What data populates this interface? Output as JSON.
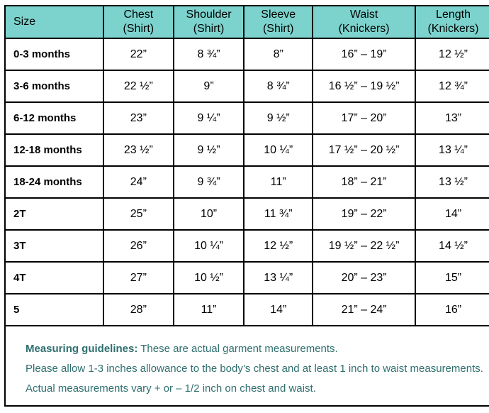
{
  "colors": {
    "header_bg": "#7cd3cd",
    "notes_text": "#2e6f6e",
    "border": "#000000",
    "body_text": "#000000"
  },
  "table": {
    "columns": [
      {
        "key": "size",
        "label": "Size",
        "sub": ""
      },
      {
        "key": "chest",
        "label": "Chest",
        "sub": "(Shirt)"
      },
      {
        "key": "shoulder",
        "label": "Shoulder",
        "sub": "(Shirt)"
      },
      {
        "key": "sleeve",
        "label": "Sleeve",
        "sub": "(Shirt)"
      },
      {
        "key": "waist",
        "label": "Waist",
        "sub": "(Knickers)"
      },
      {
        "key": "length",
        "label": "Length",
        "sub": "(Knickers)"
      }
    ],
    "rows": [
      {
        "size": "0-3 months",
        "values": [
          "22”",
          "8 ¾”",
          "8”",
          "16” – 19”",
          "12 ½”"
        ]
      },
      {
        "size": "3-6 months",
        "values": [
          "22 ½”",
          "9”",
          "8 ¾”",
          "16 ½” – 19 ½”",
          "12 ¾”"
        ]
      },
      {
        "size": "6-12 months",
        "values": [
          "23”",
          "9 ¼”",
          "9 ½”",
          "17” – 20”",
          "13”"
        ]
      },
      {
        "size": "12-18 months",
        "values": [
          "23 ½”",
          "9 ½”",
          "10 ¼”",
          "17 ½” – 20 ½”",
          "13 ¼”"
        ]
      },
      {
        "size": "18-24 months",
        "values": [
          "24”",
          "9 ¾”",
          "11”",
          "18” – 21”",
          "13 ½”"
        ]
      },
      {
        "size": "2T",
        "values": [
          "25”",
          "10”",
          "11 ¾”",
          "19” – 22”",
          "14”"
        ]
      },
      {
        "size": "3T",
        "values": [
          "26”",
          "10 ¼”",
          "12 ½”",
          "19 ½” – 22 ½”",
          "14 ½”"
        ]
      },
      {
        "size": "4T",
        "values": [
          "27”",
          "10 ½”",
          "13 ¼”",
          "20” – 23”",
          "15”"
        ]
      },
      {
        "size": "5",
        "values": [
          "28”",
          "11”",
          "14”",
          "21” – 24”",
          "16”"
        ]
      }
    ]
  },
  "notes": {
    "heading": "Measuring guidelines:",
    "heading_rest": " These are actual garment measurements.",
    "line2": "Please allow 1-3 inches allowance to the body’s chest and at least 1 inch to waist measurements.",
    "line3": "Actual measurements vary + or – 1/2 inch on chest and waist."
  }
}
